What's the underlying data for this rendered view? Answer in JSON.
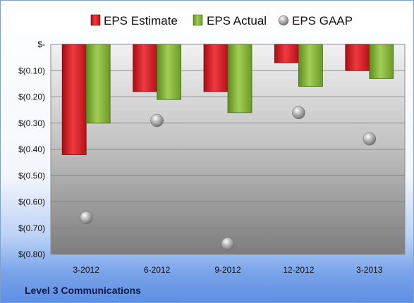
{
  "chart_data": {
    "type": "bar",
    "categories": [
      "3-2012",
      "6-2012",
      "9-2012",
      "12-2012",
      "3-2013"
    ],
    "series": [
      {
        "name": "EPS Estimate",
        "kind": "bar",
        "color": "#d9161f",
        "values": [
          -0.42,
          -0.18,
          -0.18,
          -0.07,
          -0.1
        ]
      },
      {
        "name": "EPS Actual",
        "kind": "bar",
        "color": "#86b533",
        "values": [
          -0.3,
          -0.21,
          -0.26,
          -0.16,
          -0.13
        ]
      },
      {
        "name": "EPS GAAP",
        "kind": "point",
        "color": "#9a9a9a",
        "values": [
          -0.66,
          -0.29,
          -0.76,
          -0.26,
          -0.36
        ]
      }
    ],
    "ylim": [
      -0.8,
      0.0
    ],
    "yticks": [
      {
        "value": 0,
        "label": "$-"
      },
      {
        "value": -0.1,
        "label": "$(0.10)"
      },
      {
        "value": -0.2,
        "label": "$(0.20)"
      },
      {
        "value": -0.3,
        "label": "$(0.30)"
      },
      {
        "value": -0.4,
        "label": "$(0.40)"
      },
      {
        "value": -0.5,
        "label": "$(0.50)"
      },
      {
        "value": -0.6,
        "label": "$(0.60)"
      },
      {
        "value": -0.7,
        "label": "$(0.70)"
      },
      {
        "value": -0.8,
        "label": "$(0.80)"
      }
    ],
    "grid": true,
    "legend_position": "top"
  },
  "company_label": "Level 3 Communications"
}
